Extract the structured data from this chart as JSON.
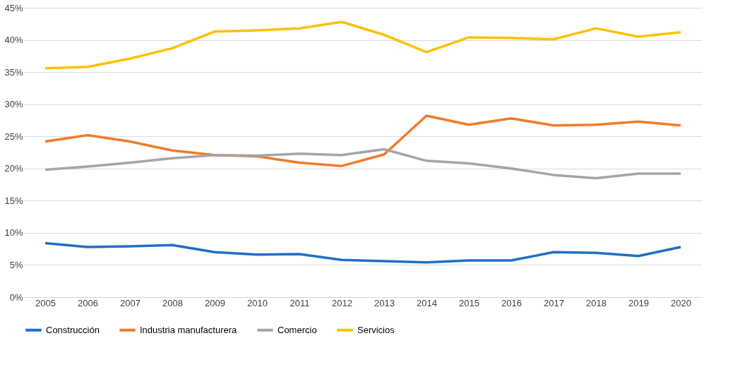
{
  "chart_data": {
    "type": "line",
    "categories": [
      "2005",
      "2006",
      "2007",
      "2008",
      "2009",
      "2010",
      "2011",
      "2012",
      "2013",
      "2014",
      "2015",
      "2016",
      "2017",
      "2018",
      "2019",
      "2020"
    ],
    "series": [
      {
        "name": "Construcción",
        "color": "#1f6fc5",
        "values": [
          8.4,
          7.8,
          7.9,
          8.1,
          7.0,
          6.6,
          6.7,
          5.8,
          5.6,
          5.4,
          5.7,
          5.7,
          7.0,
          6.9,
          6.4,
          7.8
        ]
      },
      {
        "name": "Industria manufacturera",
        "color": "#f07b2c",
        "values": [
          24.2,
          25.2,
          24.2,
          22.8,
          22.1,
          21.9,
          20.9,
          20.4,
          22.2,
          28.2,
          26.8,
          27.8,
          26.7,
          26.8,
          27.3,
          26.7
        ]
      },
      {
        "name": "Comercio",
        "color": "#a5a5a5",
        "values": [
          19.8,
          20.3,
          20.9,
          21.6,
          22.1,
          22.0,
          22.3,
          22.1,
          23.0,
          21.2,
          20.8,
          20.0,
          19.0,
          18.5,
          19.2,
          19.2
        ]
      },
      {
        "name": "Servicios",
        "color": "#ffc000",
        "values": [
          35.6,
          35.8,
          37.1,
          38.7,
          41.3,
          41.5,
          41.8,
          42.8,
          40.8,
          38.1,
          40.4,
          40.3,
          40.1,
          41.8,
          40.5,
          41.2
        ]
      }
    ],
    "ylim": [
      0,
      45
    ],
    "yticks": [
      {
        "value": 0,
        "label": "0%"
      },
      {
        "value": 5,
        "label": "5%"
      },
      {
        "value": 10,
        "label": "10%"
      },
      {
        "value": 15,
        "label": "15%"
      },
      {
        "value": 20,
        "label": "20%"
      },
      {
        "value": 25,
        "label": "25%"
      },
      {
        "value": 30,
        "label": "30%"
      },
      {
        "value": 35,
        "label": "35%"
      },
      {
        "value": 40,
        "label": "40%"
      },
      {
        "value": 45,
        "label": "45%"
      }
    ],
    "grid": "y",
    "legend": "bottom",
    "marker": "none",
    "line_style": "solid"
  }
}
